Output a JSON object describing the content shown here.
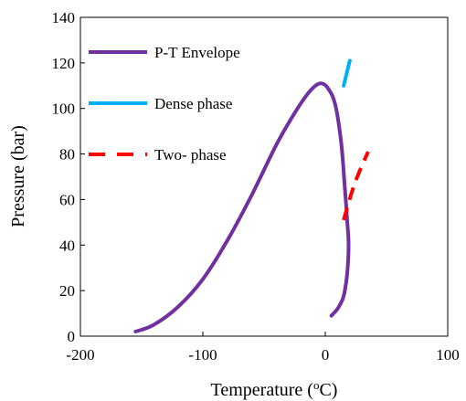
{
  "chart_data": {
    "type": "line",
    "xlabel": "Temperature (",
    "xlabel_sup": "o",
    "xlabel_end": "C)",
    "ylabel": "Pressure (bar)",
    "xlim": [
      -200,
      100
    ],
    "ylim": [
      0,
      140
    ],
    "x_ticks": [
      -200,
      -100,
      0,
      100
    ],
    "y_ticks": [
      0,
      20,
      40,
      60,
      80,
      100,
      120,
      140
    ],
    "grid": false,
    "legend_position": "top-left",
    "series": [
      {
        "name": "P-T Envelope",
        "color": "#7030A0",
        "style": "solid",
        "points": [
          [
            -155,
            2
          ],
          [
            -140,
            5
          ],
          [
            -120,
            13
          ],
          [
            -100,
            25
          ],
          [
            -80,
            42
          ],
          [
            -60,
            62
          ],
          [
            -40,
            84
          ],
          [
            -25,
            98
          ],
          [
            -15,
            106
          ],
          [
            -8,
            110
          ],
          [
            -3,
            111
          ],
          [
            2,
            109
          ],
          [
            8,
            102
          ],
          [
            13,
            85
          ],
          [
            16,
            65
          ],
          [
            18,
            50
          ],
          [
            19,
            40
          ],
          [
            18,
            28
          ],
          [
            16,
            20
          ],
          [
            14,
            16
          ],
          [
            10,
            12
          ],
          [
            5,
            9
          ]
        ]
      },
      {
        "name": "Dense phase",
        "color": "#00B0F0",
        "style": "solid",
        "points": [
          [
            15,
            110
          ],
          [
            20,
            121
          ]
        ]
      },
      {
        "name": "Two- phase",
        "color": "#FF0000",
        "style": "dashed",
        "points": [
          [
            15,
            51
          ],
          [
            24,
            67
          ],
          [
            35,
            81
          ]
        ]
      }
    ]
  }
}
